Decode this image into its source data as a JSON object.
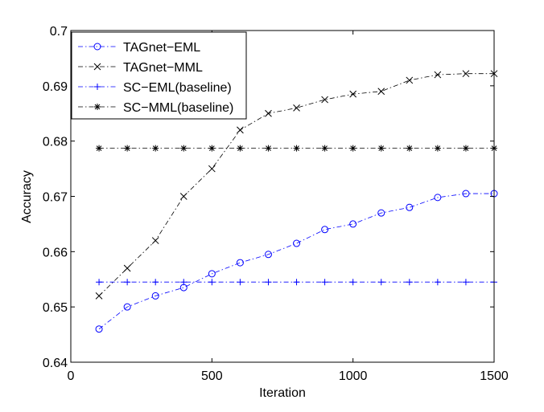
{
  "chart_data": {
    "type": "line",
    "title": "",
    "xlabel": "Iteration",
    "ylabel": "Accuracy",
    "xlim": [
      0,
      1500
    ],
    "ylim": [
      0.64,
      0.7
    ],
    "xticks": [
      0,
      500,
      1000,
      1500
    ],
    "xtick_labels": [
      "0",
      "500",
      "1000",
      "1500"
    ],
    "yticks": [
      0.64,
      0.65,
      0.66,
      0.67,
      0.68,
      0.69,
      0.7
    ],
    "ytick_labels": [
      "0.64",
      "0.65",
      "0.66",
      "0.67",
      "0.68",
      "0.69",
      "0.7"
    ],
    "grid": false,
    "legend_position": "top-left",
    "x": [
      100,
      200,
      300,
      400,
      500,
      600,
      700,
      800,
      900,
      1000,
      1100,
      1200,
      1300,
      1400,
      1500
    ],
    "series": [
      {
        "name": "TAGnet−EML",
        "color": "#0000ff",
        "marker": "circle",
        "line_style": "dash-dot",
        "values": [
          0.646,
          0.65,
          0.652,
          0.6535,
          0.656,
          0.658,
          0.6595,
          0.6615,
          0.664,
          0.665,
          0.667,
          0.668,
          0.6698,
          0.6705,
          0.6705
        ]
      },
      {
        "name": "TAGnet−MML",
        "color": "#000000",
        "marker": "x",
        "line_style": "dash-dot",
        "values": [
          0.652,
          0.657,
          0.662,
          0.67,
          0.675,
          0.682,
          0.685,
          0.686,
          0.6875,
          0.6885,
          0.689,
          0.691,
          0.692,
          0.6922,
          0.6922
        ]
      },
      {
        "name": "SC−EML(baseline)",
        "color": "#0000ff",
        "marker": "plus",
        "line_style": "dash-dot",
        "values": [
          0.6545,
          0.6545,
          0.6545,
          0.6545,
          0.6545,
          0.6545,
          0.6545,
          0.6545,
          0.6545,
          0.6545,
          0.6545,
          0.6545,
          0.6545,
          0.6545,
          0.6545
        ]
      },
      {
        "name": "SC−MML(baseline)",
        "color": "#000000",
        "marker": "star",
        "line_style": "dash-dot",
        "values": [
          0.6787,
          0.6787,
          0.6787,
          0.6787,
          0.6787,
          0.6787,
          0.6787,
          0.6787,
          0.6787,
          0.6787,
          0.6787,
          0.6787,
          0.6787,
          0.6787,
          0.6787
        ]
      }
    ]
  }
}
